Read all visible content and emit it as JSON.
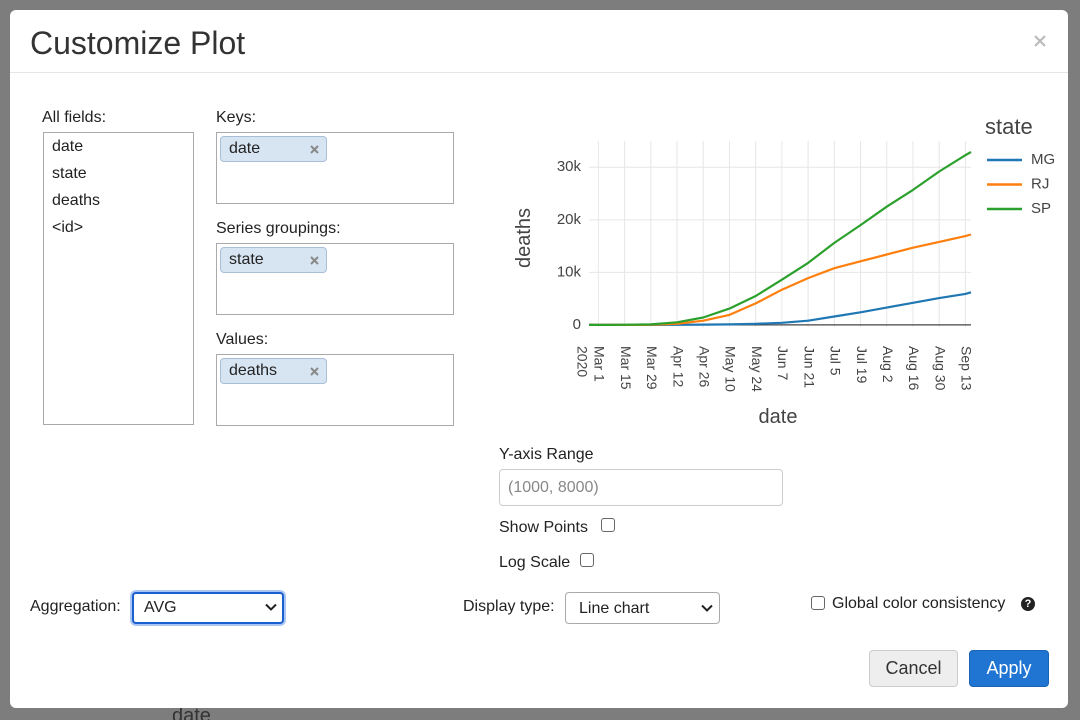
{
  "background": {
    "label": "date"
  },
  "dialog": {
    "title": "Customize Plot"
  },
  "all_fields": {
    "label": "All fields:",
    "items": [
      "date",
      "state",
      "deaths",
      "<id>"
    ]
  },
  "keys": {
    "label": "Keys:",
    "items": [
      "date"
    ]
  },
  "series_groupings": {
    "label": "Series groupings:",
    "items": [
      "state"
    ]
  },
  "values": {
    "label": "Values:",
    "items": [
      "deaths"
    ]
  },
  "y_axis_range": {
    "label": "Y-axis Range",
    "placeholder": "(1000, 8000)"
  },
  "show_points": "Show Points",
  "log_scale": "Log Scale",
  "aggregation": {
    "label": "Aggregation:",
    "value": "AVG"
  },
  "display_type": {
    "label": "Display type:",
    "value": "Line chart"
  },
  "global_color": {
    "label": "Global color consistency",
    "help": "?"
  },
  "buttons": {
    "cancel": "Cancel",
    "apply": "Apply"
  },
  "chart_data": {
    "type": "line",
    "x_label": "date",
    "y_label": "deaths",
    "legend_title": "state",
    "x": [
      "2020-02-25",
      "2020-03-01",
      "2020-03-15",
      "2020-03-29",
      "2020-04-12",
      "2020-04-26",
      "2020-05-10",
      "2020-05-24",
      "2020-06-07",
      "2020-06-21",
      "2020-07-05",
      "2020-07-19",
      "2020-08-02",
      "2020-08-16",
      "2020-08-30",
      "2020-09-13",
      "2020-09-16"
    ],
    "series": [
      {
        "name": "MG",
        "color": "#1f77b4",
        "values": [
          0,
          0,
          0,
          5,
          20,
          50,
          100,
          200,
          400,
          800,
          1600,
          2400,
          3300,
          4200,
          5100,
          5900,
          6200
        ]
      },
      {
        "name": "RJ",
        "color": "#ff7f0e",
        "values": [
          0,
          0,
          0,
          20,
          200,
          800,
          1900,
          4100,
          6700,
          8900,
          10800,
          12100,
          13400,
          14700,
          15800,
          16900,
          17200
        ]
      },
      {
        "name": "SP",
        "color": "#2ca02c",
        "values": [
          0,
          0,
          10,
          100,
          500,
          1400,
          3100,
          5500,
          8600,
          11800,
          15600,
          19000,
          22500,
          25700,
          29200,
          32300,
          32900
        ]
      }
    ],
    "xlim": [
      "2020-02-25",
      "2020-09-16"
    ],
    "x_year": "2020",
    "xticks": [
      {
        "value": "2020-03-01",
        "label": "Mar 1"
      },
      {
        "value": "2020-03-15",
        "label": "Mar 15"
      },
      {
        "value": "2020-03-29",
        "label": "Mar 29"
      },
      {
        "value": "2020-04-12",
        "label": "Apr 12"
      },
      {
        "value": "2020-04-26",
        "label": "Apr 26"
      },
      {
        "value": "2020-05-10",
        "label": "May 10"
      },
      {
        "value": "2020-05-24",
        "label": "May 24"
      },
      {
        "value": "2020-06-07",
        "label": "Jun 7"
      },
      {
        "value": "2020-06-21",
        "label": "Jun 21"
      },
      {
        "value": "2020-07-05",
        "label": "Jul 5"
      },
      {
        "value": "2020-07-19",
        "label": "Jul 19"
      },
      {
        "value": "2020-08-02",
        "label": "Aug 2"
      },
      {
        "value": "2020-08-16",
        "label": "Aug 16"
      },
      {
        "value": "2020-08-30",
        "label": "Aug 30"
      },
      {
        "value": "2020-09-13",
        "label": "Sep 13"
      }
    ],
    "ylim": [
      -400,
      35000
    ],
    "yticks": [
      0,
      {
        "value": 10000,
        "label": "10k"
      },
      {
        "value": 20000,
        "label": "20k"
      },
      {
        "value": 30000,
        "label": "30k"
      }
    ],
    "grid": true
  }
}
